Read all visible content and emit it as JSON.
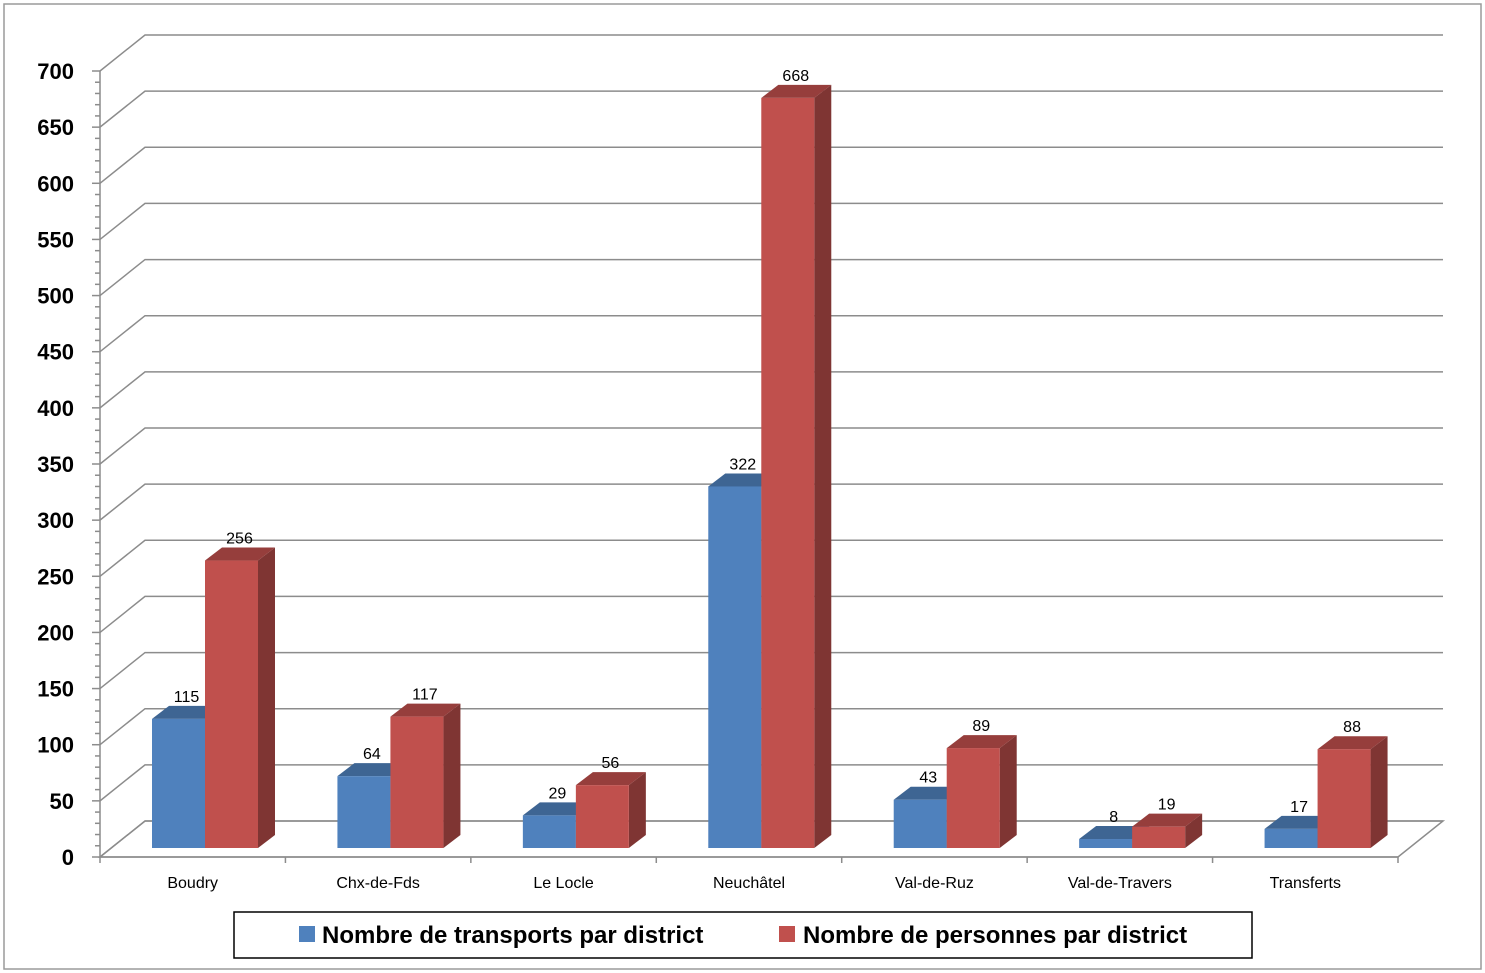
{
  "chart_data": {
    "type": "bar",
    "categories": [
      "Boudry",
      "Chx-de-Fds",
      "Le Locle",
      "Neuchâtel",
      "Val-de-Ruz",
      "Val-de-Travers",
      "Transferts"
    ],
    "series": [
      {
        "name": "Nombre de transports par district",
        "values": [
          115,
          64,
          29,
          322,
          43,
          8,
          17
        ],
        "color": "#4F81BD"
      },
      {
        "name": "Nombre de personnes par district",
        "values": [
          256,
          117,
          56,
          668,
          89,
          19,
          88
        ],
        "color": "#C0504D"
      }
    ],
    "ylim": [
      0,
      700
    ],
    "yticks": [
      0,
      50,
      100,
      150,
      200,
      250,
      300,
      350,
      400,
      450,
      500,
      550,
      600,
      650,
      700
    ],
    "grid": true,
    "legend": "bottom",
    "style": "3d-clustered-column"
  }
}
